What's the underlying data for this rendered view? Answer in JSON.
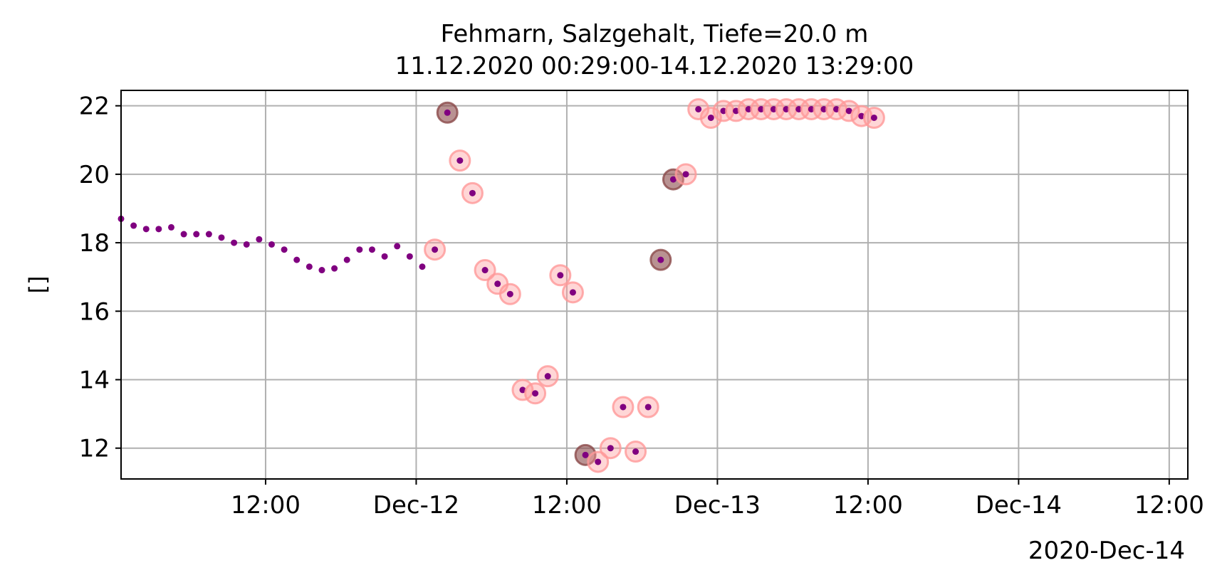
{
  "chart_data": {
    "type": "scatter",
    "title": "Fehmarn, Salzgehalt, Tiefe=20.0 m",
    "subtitle": "11.12.2020 00:29:00-14.12.2020 13:29:00",
    "xlabel": "",
    "ylabel": "[]",
    "x_offset_label": "2020-Dec-14",
    "xlim": [
      "2020-12-11 00:29",
      "2020-12-14 13:29"
    ],
    "ylim": [
      11.1,
      22.45
    ],
    "x_ticks": [
      {
        "t": "2020-12-11 12:00",
        "label": "12:00"
      },
      {
        "t": "2020-12-12 00:00",
        "label": "Dec-12"
      },
      {
        "t": "2020-12-12 12:00",
        "label": "12:00"
      },
      {
        "t": "2020-12-13 00:00",
        "label": "Dec-13"
      },
      {
        "t": "2020-12-13 12:00",
        "label": "12:00"
      },
      {
        "t": "2020-12-14 00:00",
        "label": "Dec-14"
      },
      {
        "t": "2020-12-14 12:00",
        "label": "12:00"
      }
    ],
    "y_ticks": [
      12,
      14,
      16,
      18,
      20,
      22
    ],
    "grid": true,
    "colors": {
      "points": "#800080",
      "flag_ring": "#ff9999",
      "flag_ring_dark": "#8b4a4a"
    },
    "series": [
      {
        "style": "points",
        "points": [
          [
            "2020-12-11 00:29",
            18.7
          ],
          [
            "2020-12-11 01:29",
            18.5
          ],
          [
            "2020-12-11 02:29",
            18.4
          ],
          [
            "2020-12-11 03:29",
            18.4
          ],
          [
            "2020-12-11 04:29",
            18.45
          ],
          [
            "2020-12-11 05:29",
            18.25
          ],
          [
            "2020-12-11 06:29",
            18.25
          ],
          [
            "2020-12-11 07:29",
            18.25
          ],
          [
            "2020-12-11 08:29",
            18.15
          ],
          [
            "2020-12-11 09:29",
            18.0
          ],
          [
            "2020-12-11 10:29",
            17.95
          ],
          [
            "2020-12-11 11:29",
            18.1
          ],
          [
            "2020-12-11 12:29",
            17.95
          ],
          [
            "2020-12-11 13:29",
            17.8
          ],
          [
            "2020-12-11 14:29",
            17.5
          ],
          [
            "2020-12-11 15:29",
            17.3
          ],
          [
            "2020-12-11 16:29",
            17.2
          ],
          [
            "2020-12-11 17:29",
            17.25
          ],
          [
            "2020-12-11 18:29",
            17.5
          ],
          [
            "2020-12-11 19:29",
            17.8
          ],
          [
            "2020-12-11 20:29",
            17.8
          ],
          [
            "2020-12-11 21:29",
            17.6
          ],
          [
            "2020-12-11 22:29",
            17.9
          ],
          [
            "2020-12-11 23:29",
            17.6
          ],
          [
            "2020-12-12 00:29",
            17.3
          ]
        ]
      },
      {
        "style": "flagged",
        "points": [
          [
            "2020-12-12 01:29",
            17.8
          ],
          [
            "2020-12-12 02:29",
            21.8,
            "dark"
          ],
          [
            "2020-12-12 03:29",
            20.4
          ],
          [
            "2020-12-12 04:29",
            19.45
          ],
          [
            "2020-12-12 05:29",
            17.2
          ],
          [
            "2020-12-12 06:29",
            16.8
          ],
          [
            "2020-12-12 07:29",
            16.5
          ],
          [
            "2020-12-12 08:29",
            13.7
          ],
          [
            "2020-12-12 09:29",
            13.6
          ],
          [
            "2020-12-12 10:29",
            14.1
          ],
          [
            "2020-12-12 11:29",
            17.05
          ],
          [
            "2020-12-12 12:29",
            16.55
          ],
          [
            "2020-12-12 13:29",
            11.8,
            "dark"
          ],
          [
            "2020-12-12 14:29",
            11.6
          ],
          [
            "2020-12-12 15:29",
            12.0
          ],
          [
            "2020-12-12 16:29",
            13.2
          ],
          [
            "2020-12-12 17:29",
            11.9
          ],
          [
            "2020-12-12 18:29",
            13.2
          ],
          [
            "2020-12-12 19:29",
            17.5,
            "dark"
          ],
          [
            "2020-12-12 20:29",
            19.85,
            "dark"
          ],
          [
            "2020-12-12 21:29",
            20.0
          ],
          [
            "2020-12-12 22:29",
            21.9
          ],
          [
            "2020-12-12 23:29",
            21.65
          ],
          [
            "2020-12-13 00:29",
            21.85
          ],
          [
            "2020-12-13 01:29",
            21.85
          ],
          [
            "2020-12-13 02:29",
            21.9
          ],
          [
            "2020-12-13 03:29",
            21.9
          ],
          [
            "2020-12-13 04:29",
            21.9
          ],
          [
            "2020-12-13 05:29",
            21.9
          ],
          [
            "2020-12-13 06:29",
            21.9
          ],
          [
            "2020-12-13 07:29",
            21.9
          ],
          [
            "2020-12-13 08:29",
            21.9
          ],
          [
            "2020-12-13 09:29",
            21.9
          ],
          [
            "2020-12-13 10:29",
            21.85
          ],
          [
            "2020-12-13 11:29",
            21.7
          ],
          [
            "2020-12-13 12:29",
            21.65
          ]
        ]
      }
    ]
  }
}
